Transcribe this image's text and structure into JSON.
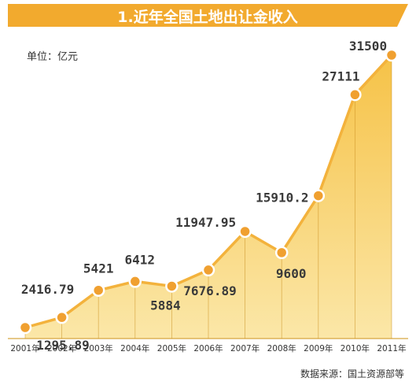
{
  "chart_data": {
    "type": "area",
    "title": "1.近年全国土地出让金收入",
    "unit_label": "单位：亿元",
    "source": "数据来源：国土资源部等",
    "categories": [
      "2001年",
      "2002年",
      "2003年",
      "2004年",
      "2005年",
      "2006年",
      "2007年",
      "2008年",
      "2009年",
      "2010年",
      "2011年"
    ],
    "values": [
      1295.89,
      2416.79,
      5421,
      6412,
      5884,
      7676.89,
      11947.95,
      9600,
      15910.2,
      27111,
      31500
    ],
    "value_labels": [
      "1295.89",
      "2416.79",
      "5421",
      "6412",
      "5884",
      "7676.89",
      "11947.95",
      "9600",
      "15910.2",
      "27111",
      "31500"
    ],
    "ylim": [
      0,
      31500
    ],
    "grid": false,
    "legend": "none"
  },
  "colors": {
    "title_band": "#f2aa2e",
    "title_text": "#ffffff",
    "area_top": "#f6c247",
    "area_bottom": "#fbe7a8",
    "line": "#f3b23c",
    "marker": "#f0a030",
    "marker_border": "#ffffff",
    "label_text": "#3a3a3a",
    "drop_line": "#c98f22"
  }
}
